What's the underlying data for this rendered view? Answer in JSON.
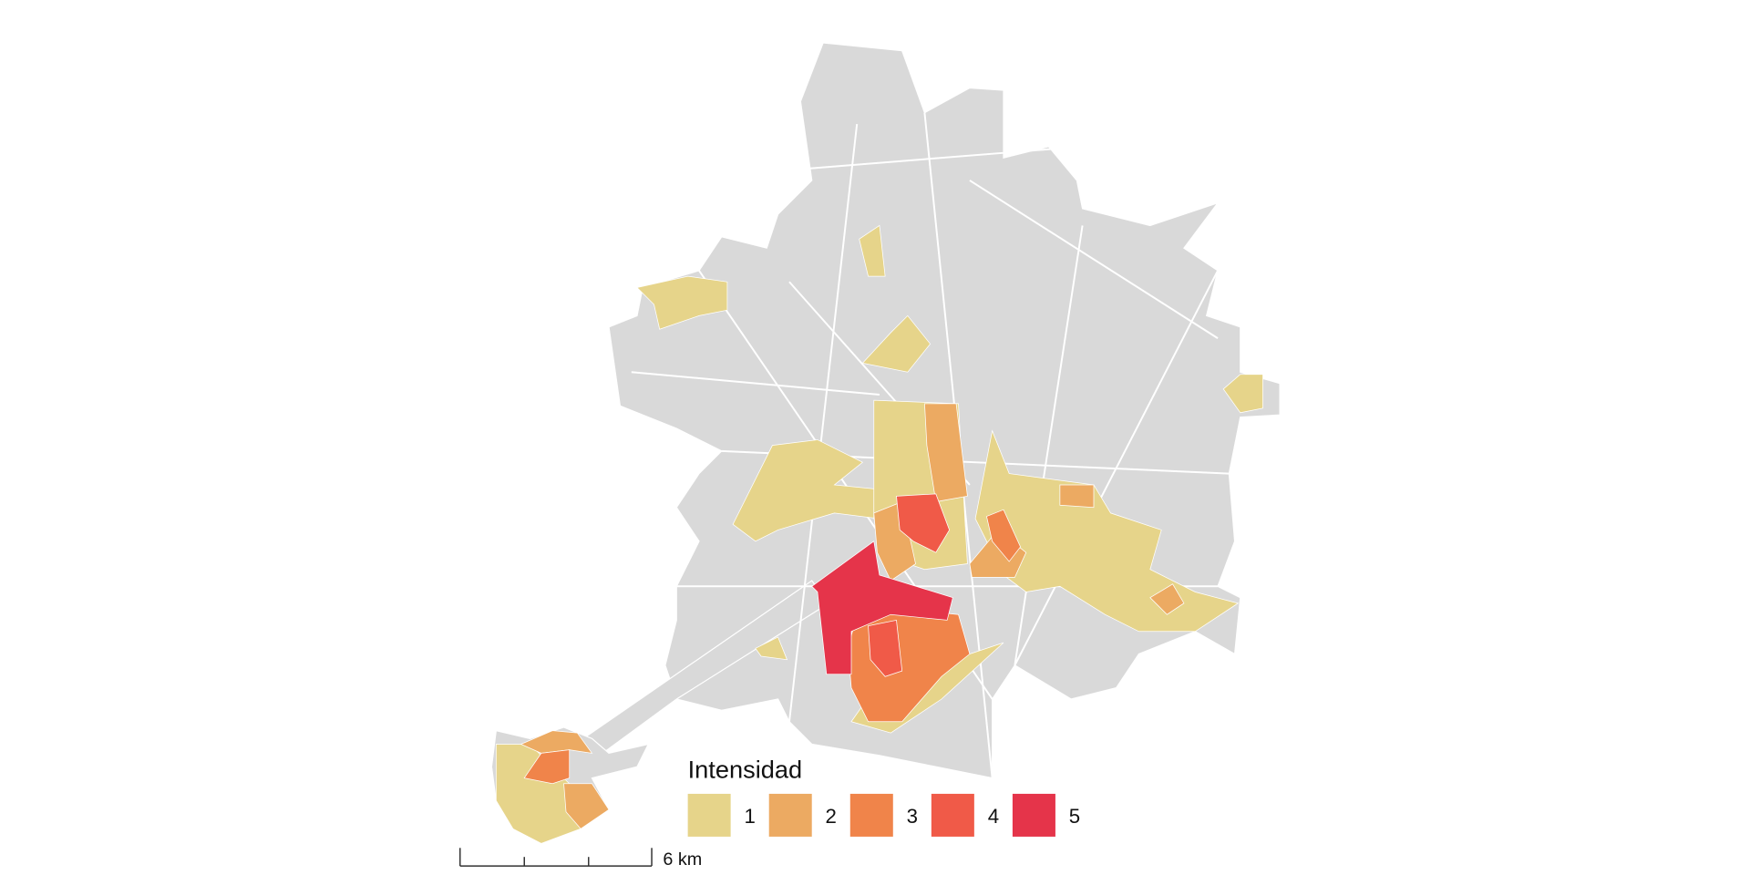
{
  "legend": {
    "title": "Intensidad",
    "items": [
      {
        "label": "1",
        "color": "#e6d48a"
      },
      {
        "label": "2",
        "color": "#ecaa62"
      },
      {
        "label": "3",
        "color": "#f0844a"
      },
      {
        "label": "4",
        "color": "#f05a48"
      },
      {
        "label": "5",
        "color": "#e5344a"
      }
    ]
  },
  "scale_bar": {
    "label": "6 km"
  }
}
